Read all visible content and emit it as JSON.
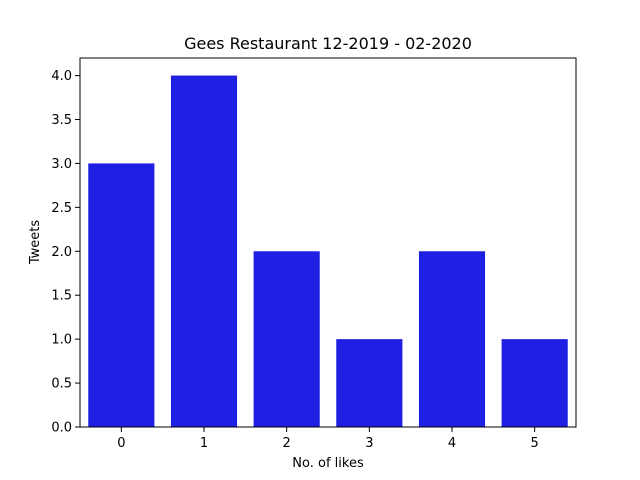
{
  "chart_data": {
    "type": "bar",
    "title": "Gees Restaurant 12-2019 - 02-2020",
    "xlabel": "No. of likes",
    "ylabel": "Tweets",
    "categories": [
      "0",
      "1",
      "2",
      "3",
      "4",
      "5"
    ],
    "values": [
      3,
      4,
      2,
      1,
      2,
      1
    ],
    "ylim": [
      0,
      4.2
    ],
    "yticks": [
      "0.0",
      "0.5",
      "1.0",
      "1.5",
      "2.0",
      "2.5",
      "3.0",
      "3.5",
      "4.0"
    ],
    "grid": false,
    "legend": "none",
    "bar_color": "#1f1fe3"
  }
}
